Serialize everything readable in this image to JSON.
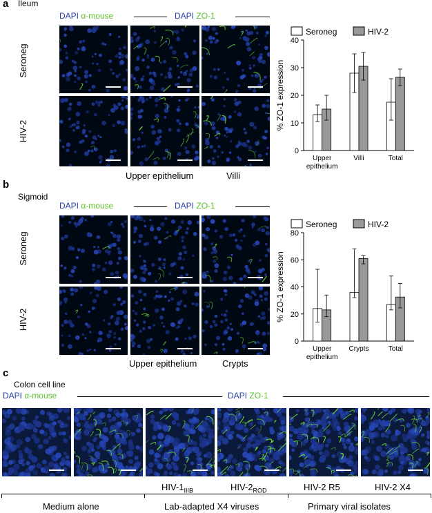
{
  "panel_a": {
    "label": "a",
    "tissue": "Ileum",
    "stain_left": {
      "dapi": "DAPI",
      "marker": "α-mouse"
    },
    "stain_right": {
      "dapi": "DAPI",
      "marker": "ZO-1"
    },
    "rows": [
      "Seroneg",
      "HIV-2"
    ],
    "captions": [
      "Upper epithelium",
      "Villi"
    ]
  },
  "panel_b": {
    "label": "b",
    "tissue": "Sigmoid",
    "stain_left": {
      "dapi": "DAPI",
      "marker": "α-mouse"
    },
    "stain_right": {
      "dapi": "DAPI",
      "marker": "ZO-1"
    },
    "rows": [
      "Seroneg",
      "HIV-2"
    ],
    "captions": [
      "Upper epithelium",
      "Crypts"
    ]
  },
  "panel_c": {
    "label": "c",
    "title": "Colon cell line",
    "stain_left": {
      "dapi": "DAPI",
      "marker": "α-mouse"
    },
    "stain_right": {
      "dapi": "DAPI",
      "marker": "ZO-1"
    },
    "virus_labels": [
      {
        "main": "HIV-1",
        "sub": "IIIB"
      },
      {
        "main": "HIV-2",
        "sub": "ROD"
      },
      {
        "main": "HIV-2 R5",
        "sub": ""
      },
      {
        "main": "HIV-2 X4",
        "sub": ""
      }
    ],
    "groups": [
      "Medium alone",
      "Lab-adapted X4 viruses",
      "Primary viral isolates"
    ]
  },
  "colors": {
    "seroneg_fill": "#ffffff",
    "hiv2_fill": "#999999",
    "dapi_blue": "#2a3fa6",
    "zo1_green": "#5cbf2a"
  },
  "chart_data": [
    {
      "type": "bar",
      "categories": [
        "Upper epithelium",
        "Villi",
        "Total"
      ],
      "category_lines": [
        [
          "Upper",
          "epithelium"
        ],
        [
          "Villi"
        ],
        [
          "Total"
        ]
      ],
      "series": [
        {
          "name": "Seroneg",
          "values": [
            13,
            28,
            17.5
          ],
          "err_low": [
            2.5,
            7,
            6.5
          ],
          "err_high": [
            3.5,
            7,
            8.5
          ]
        },
        {
          "name": "HIV-2",
          "values": [
            15,
            30.5,
            26.5
          ],
          "err_low": [
            4,
            5,
            3
          ],
          "err_high": [
            5,
            5,
            3
          ]
        }
      ],
      "ylabel": "% ZO-1 expression",
      "ylim": [
        0,
        40
      ],
      "yticks": [
        0,
        10,
        20,
        30,
        40
      ],
      "legend": "top"
    },
    {
      "type": "bar",
      "categories": [
        "Upper epithelium",
        "Crypts",
        "Total"
      ],
      "category_lines": [
        [
          "Upper",
          "epithelium"
        ],
        [
          "Crypts"
        ],
        [
          "Total"
        ]
      ],
      "series": [
        {
          "name": "Seroneg",
          "values": [
            24,
            36,
            27
          ],
          "err_low": [
            10,
            4,
            4
          ],
          "err_high": [
            29,
            32,
            21
          ]
        },
        {
          "name": "HIV-2",
          "values": [
            23,
            61,
            32.5
          ],
          "err_low": [
            5,
            4,
            8
          ],
          "err_high": [
            11,
            2,
            10
          ]
        }
      ],
      "ylabel": "% ZO-1 expression",
      "ylim": [
        0,
        80
      ],
      "yticks": [
        0,
        20,
        40,
        60,
        80
      ],
      "legend": "top"
    }
  ]
}
